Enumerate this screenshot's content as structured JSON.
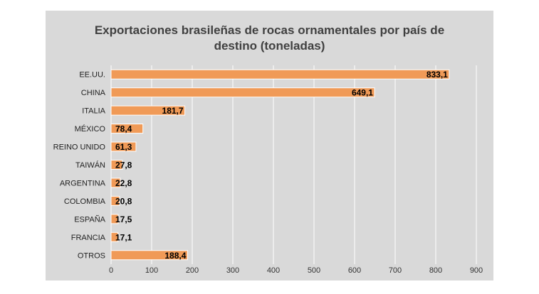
{
  "chart_data": {
    "type": "bar",
    "orientation": "horizontal",
    "title_lines": [
      "Exportaciones brasileñas de rocas ornamentales por país de",
      "destino (toneladas)"
    ],
    "categories": [
      "EE.UU.",
      "CHINA",
      "ITALIA",
      "MÉXICO",
      "REINO UNIDO",
      "TAIWÁN",
      "ARGENTINA",
      "COLOMBIA",
      "ESPAÑA",
      "FRANCIA",
      "OTROS"
    ],
    "values": [
      833.1,
      649.1,
      181.7,
      78.4,
      61.3,
      27.8,
      22.8,
      20.8,
      17.5,
      17.1,
      188.4
    ],
    "value_labels": [
      "833,1",
      "649,1",
      "181,7",
      "78,4",
      "61,3",
      "27,8",
      "22,8",
      "20,8",
      "17,5",
      "17,1",
      "188,4"
    ],
    "xlim": [
      0,
      900
    ],
    "xticks": [
      0,
      100,
      200,
      300,
      400,
      500,
      600,
      700,
      800,
      900
    ],
    "xlabel": "",
    "ylabel": "",
    "grid": true,
    "legend": "none",
    "colors": {
      "panel_background": "#d9d9d9",
      "bar": "#f09a57",
      "bar_border": "#ffffff",
      "gridline": "#ffffff"
    }
  }
}
